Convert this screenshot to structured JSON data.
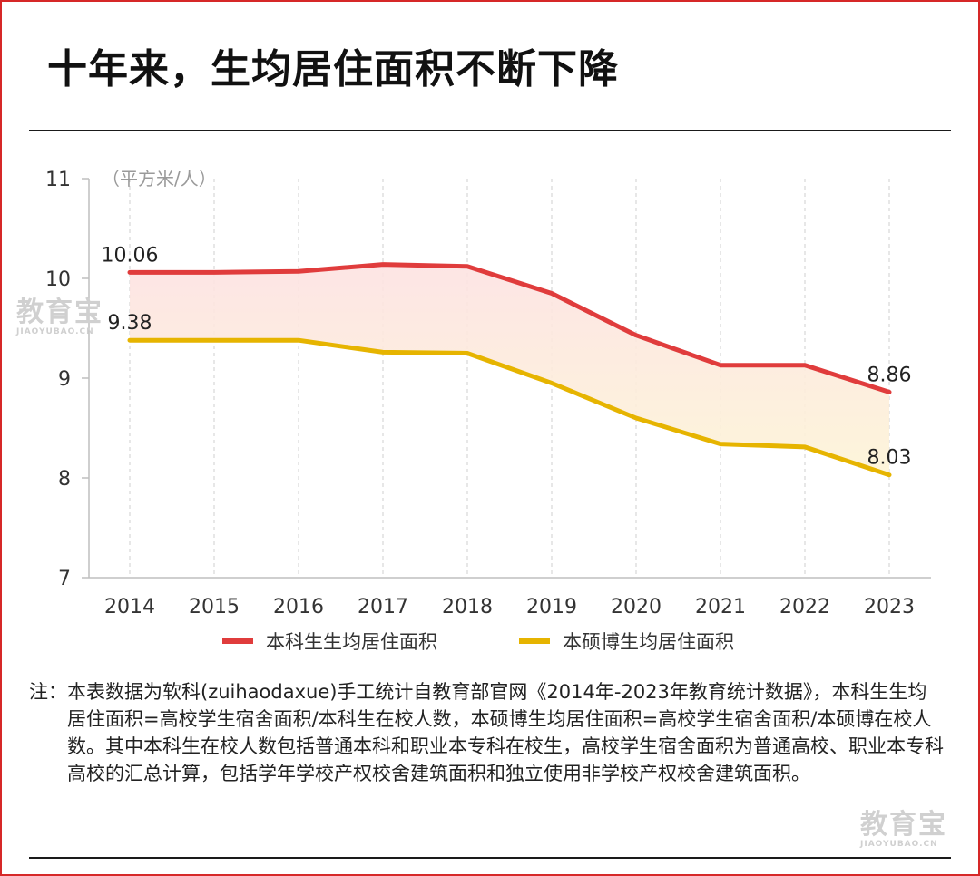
{
  "page": {
    "title": "十年来，生均居住面积不断下降",
    "watermark_main": "教育宝",
    "watermark_sub": "JIAOYUBAO.CN",
    "note_label": "注：",
    "note_text": "本表数据为软科(zuihaodaxue)手工统计自教育部官网《2014年-2023年教育统计数据》，本科生生均居住面积=高校学生宿舍面积/本科生在校人数，本硕博生均居住面积=高校学生宿舍面积/本硕博在校人数。其中本科生在校人数包括普通本科和职业本专科在校生，高校学生宿舍面积为普通高校、职业本专科高校的汇总计算，包括学年学校产权校舍建筑面积和独立使用非学校产权校舍建筑面积。"
  },
  "chart_data": {
    "type": "line",
    "unit_label": "（平方米/人）",
    "categories": [
      "2014",
      "2015",
      "2016",
      "2017",
      "2018",
      "2019",
      "2020",
      "2021",
      "2022",
      "2023"
    ],
    "yticks": [
      7,
      8,
      9,
      10,
      11
    ],
    "ylim": [
      7,
      11
    ],
    "grid": "vertical-dashed",
    "legend_position": "bottom",
    "series": [
      {
        "name": "本科生生均居住面积",
        "color": "#e03c3c",
        "values": [
          10.06,
          10.06,
          10.07,
          10.14,
          10.12,
          9.85,
          9.43,
          9.13,
          9.13,
          8.86
        ],
        "labels": [
          "10.06",
          "",
          "",
          "",
          "",
          "",
          "",
          "",
          "",
          "8.86"
        ]
      },
      {
        "name": "本硕博生均居住面积",
        "color": "#e6b400",
        "values": [
          9.38,
          9.38,
          9.38,
          9.26,
          9.25,
          8.95,
          8.6,
          8.34,
          8.31,
          8.03
        ],
        "labels": [
          "9.38",
          "",
          "",
          "",
          "",
          "",
          "",
          "",
          "",
          "8.03"
        ]
      }
    ],
    "band_fill": "#fdecc8"
  }
}
